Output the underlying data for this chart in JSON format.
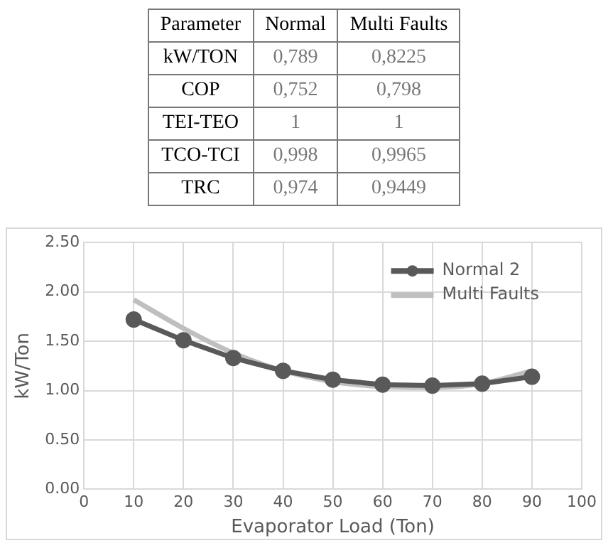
{
  "chart_data": [
    {
      "type": "other",
      "categories": [
        "Parameter",
        "Normal",
        "Multi Faults"
      ],
      "y_categories": [
        "kW/TON",
        "COP",
        "TEI-TEO",
        "TCO-TCI",
        "TRC"
      ],
      "cell_labels": [
        [
          "0,789",
          "0,8225"
        ],
        [
          "0,752",
          "0,798"
        ],
        [
          "1",
          "1"
        ],
        [
          "0,998",
          "0,9965"
        ],
        [
          "0,974",
          "0,9449"
        ]
      ]
    },
    {
      "type": "line",
      "xlabel": "Evaporator Load (Ton)",
      "ylabel": "kW/Ton",
      "x": [
        10,
        20,
        30,
        40,
        50,
        60,
        70,
        80,
        90
      ],
      "xlim": [
        0,
        100
      ],
      "xticks": [
        0,
        10,
        20,
        30,
        40,
        50,
        60,
        70,
        80,
        90,
        100
      ],
      "ylim": [
        0,
        2.5
      ],
      "yticks": [
        {
          "value": 0,
          "label": "0.00"
        },
        {
          "value": 0.5,
          "label": "0.50"
        },
        {
          "value": 1,
          "label": "1.00"
        },
        {
          "value": 1.5,
          "label": "1.50"
        },
        {
          "value": 2,
          "label": "2.00"
        },
        {
          "value": 2.5,
          "label": "2.50"
        }
      ],
      "grid": true,
      "legend": "top right",
      "series": [
        {
          "name": "Normal 2",
          "color": "#595959",
          "marker": "circle",
          "values": [
            1.72,
            1.51,
            1.33,
            1.2,
            1.11,
            1.06,
            1.05,
            1.07,
            1.14
          ]
        },
        {
          "name": "Multi Faults",
          "color": "#bfbfbf",
          "marker": "none",
          "values": [
            1.92,
            1.63,
            1.38,
            1.2,
            1.09,
            1.04,
            1.03,
            1.07,
            1.2
          ]
        }
      ]
    }
  ]
}
